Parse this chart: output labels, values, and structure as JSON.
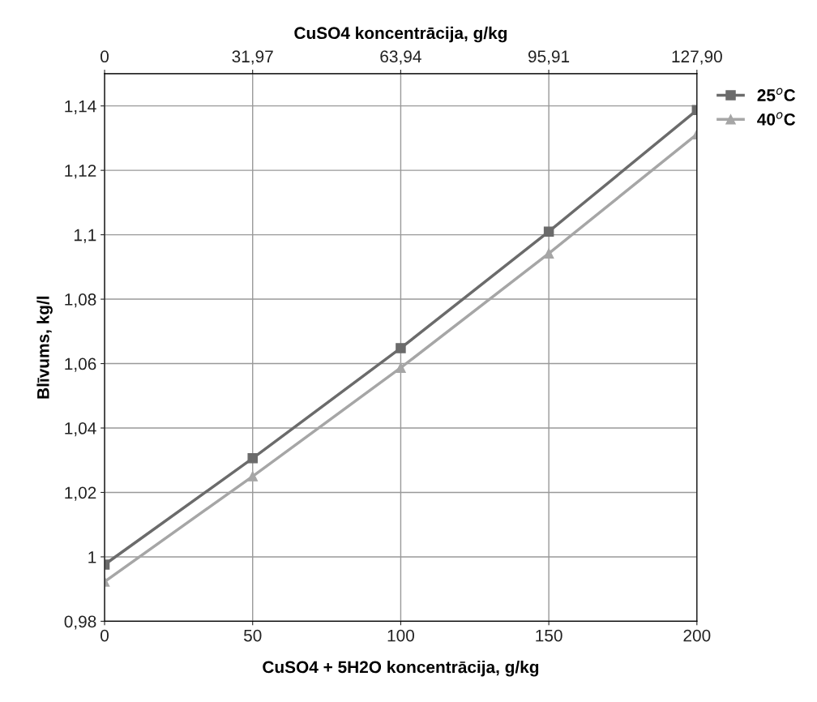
{
  "chart_data": {
    "type": "line",
    "xlabel": "CuSO4 + 5H2O koncentrācija, g/kg",
    "x2label": "CuSO4 koncentrācija, g/kg",
    "ylabel": "Blīvums, kg/l",
    "x": [
      0,
      50,
      100,
      150,
      200
    ],
    "series": [
      {
        "name": "25$^{o}$C",
        "color": "#6b6b6b",
        "marker": "square",
        "values": [
          0.9976,
          1.0306,
          1.0648,
          1.101,
          1.1387
        ]
      },
      {
        "name": "40$^{o}$C",
        "color": "#a6a6a6",
        "marker": "triangle",
        "values": [
          0.9923,
          1.025,
          1.0587,
          1.0942,
          1.1312
        ]
      }
    ],
    "xlim": [
      0,
      200
    ],
    "xticks": [
      0,
      50,
      100,
      150,
      200
    ],
    "x2lim": [
      0,
      127.9
    ],
    "x2ticks": [
      {
        "value": 0,
        "label": "0"
      },
      {
        "value": 31.97,
        "label": "31,97"
      },
      {
        "value": 63.94,
        "label": "63,94"
      },
      {
        "value": 95.91,
        "label": "95,91"
      },
      {
        "value": 127.9,
        "label": "127,90"
      }
    ],
    "ylim": [
      0.98,
      1.15
    ],
    "yticks": [
      {
        "value": 0.98,
        "label": "0,98"
      },
      {
        "value": 1,
        "label": "1"
      },
      {
        "value": 1.02,
        "label": "1,02"
      },
      {
        "value": 1.04,
        "label": "1,04"
      },
      {
        "value": 1.06,
        "label": "1,06"
      },
      {
        "value": 1.08,
        "label": "1,08"
      },
      {
        "value": 1.1,
        "label": "1,1"
      },
      {
        "value": 1.12,
        "label": "1,12"
      },
      {
        "value": 1.14,
        "label": "1,14"
      }
    ],
    "grid": true,
    "legend": "right",
    "line_style": "solid"
  }
}
